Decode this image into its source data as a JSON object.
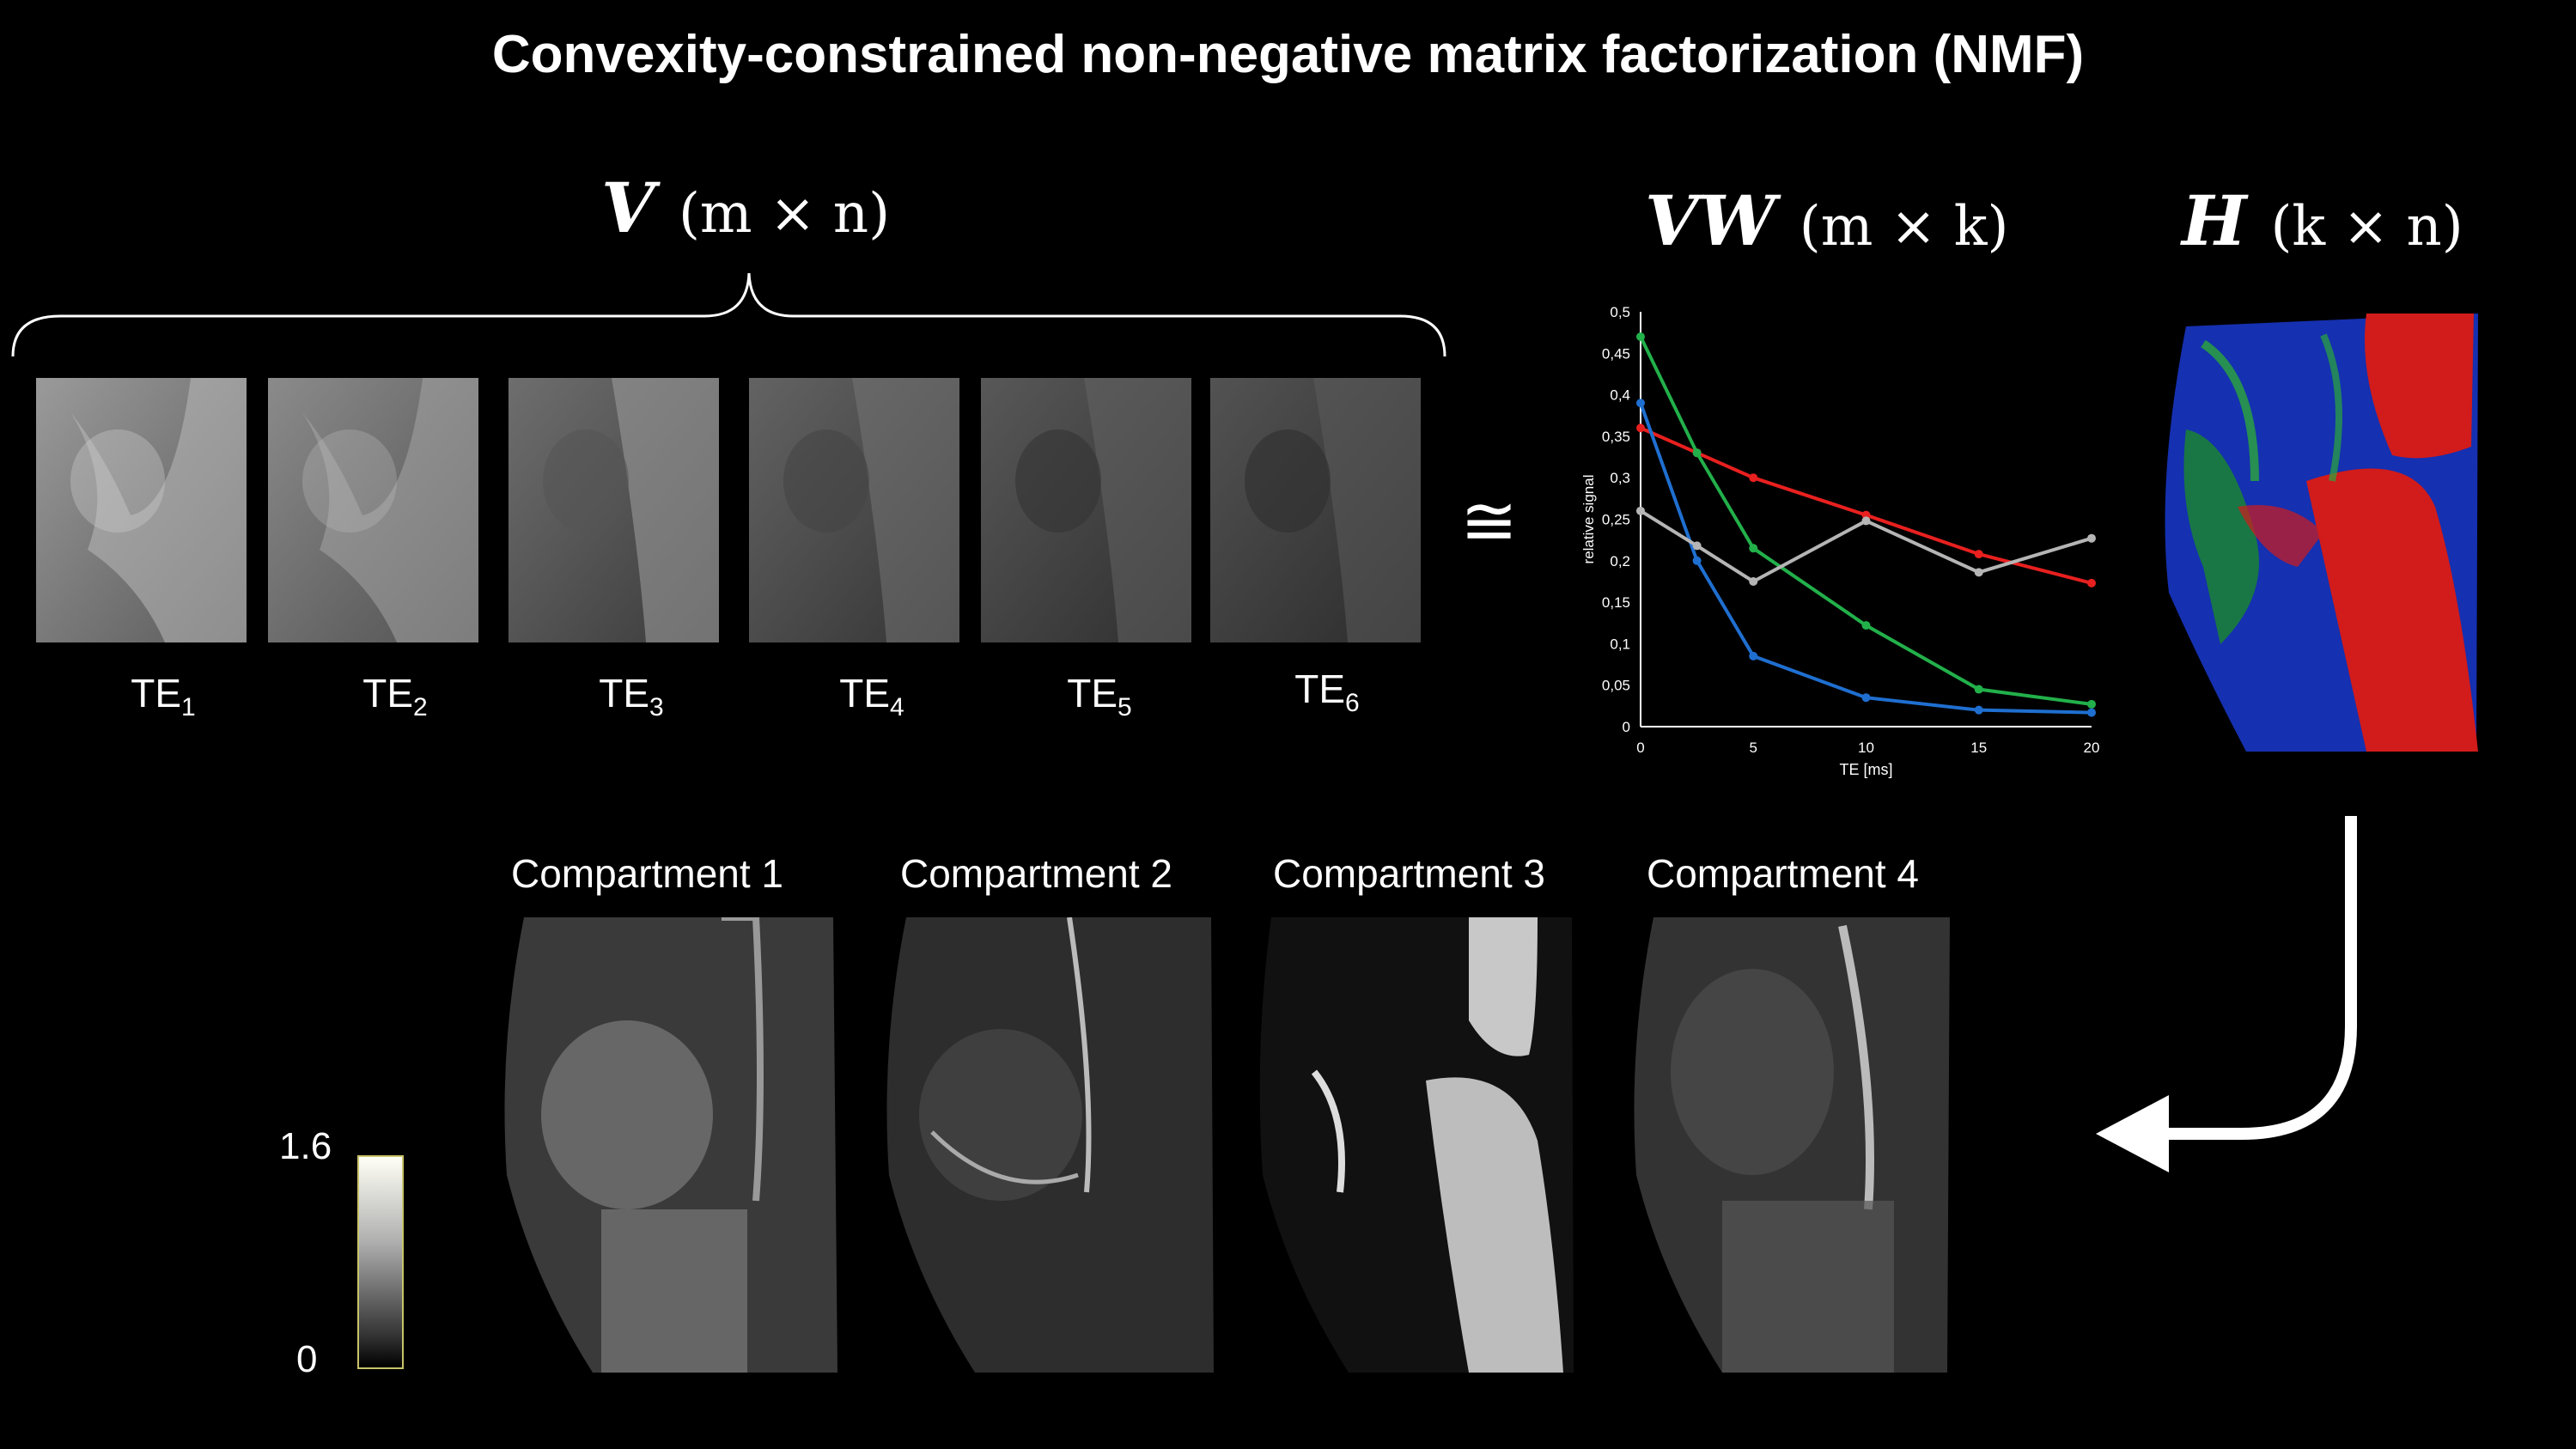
{
  "title": "Convexity-constrained non-negative matrix factorization (NMF)",
  "v_label": {
    "symbol": "V",
    "dims": "(m × n)"
  },
  "vw_label": {
    "symbol": "VW",
    "dims": "(m × k)"
  },
  "h_label": {
    "symbol": "H",
    "dims": "(k × n)"
  },
  "approx_symbol": "≅",
  "te_labels": [
    {
      "base": "TE",
      "sub": "1"
    },
    {
      "base": "TE",
      "sub": "2"
    },
    {
      "base": "TE",
      "sub": "3"
    },
    {
      "base": "TE",
      "sub": "4"
    },
    {
      "base": "TE",
      "sub": "5"
    },
    {
      "base": "TE",
      "sub": "6"
    }
  ],
  "compartments": [
    "Compartment 1",
    "Compartment 2",
    "Compartment 3",
    "Compartment 4"
  ],
  "colorbar": {
    "max": "1.6",
    "min": "0"
  },
  "chart_data": {
    "type": "line",
    "xlabel": "TE [ms]",
    "ylabel": "relative signal",
    "xlim": [
      0,
      20
    ],
    "ylim": [
      0,
      0.5
    ],
    "xticks": [
      "0",
      "5",
      "10",
      "15",
      "20"
    ],
    "yticks": [
      "0",
      "0,05",
      "0,1",
      "0,15",
      "0,2",
      "0,25",
      "0,3",
      "0,35",
      "0,4",
      "0,45",
      "0,5"
    ],
    "x": [
      0,
      2.5,
      5,
      10,
      15,
      20
    ],
    "series": [
      {
        "name": "red",
        "color": "#e8201f",
        "values": [
          0.36,
          0.33,
          0.3,
          0.255,
          0.208,
          0.173
        ]
      },
      {
        "name": "green",
        "color": "#22b04a",
        "values": [
          0.47,
          0.33,
          0.215,
          0.122,
          0.045,
          0.027
        ]
      },
      {
        "name": "blue",
        "color": "#1f6fd0",
        "values": [
          0.39,
          0.2,
          0.085,
          0.035,
          0.02,
          0.017
        ]
      },
      {
        "name": "gray",
        "color": "#b5b5b5",
        "values": [
          0.26,
          0.218,
          0.175,
          0.248,
          0.186,
          0.227
        ]
      }
    ]
  }
}
